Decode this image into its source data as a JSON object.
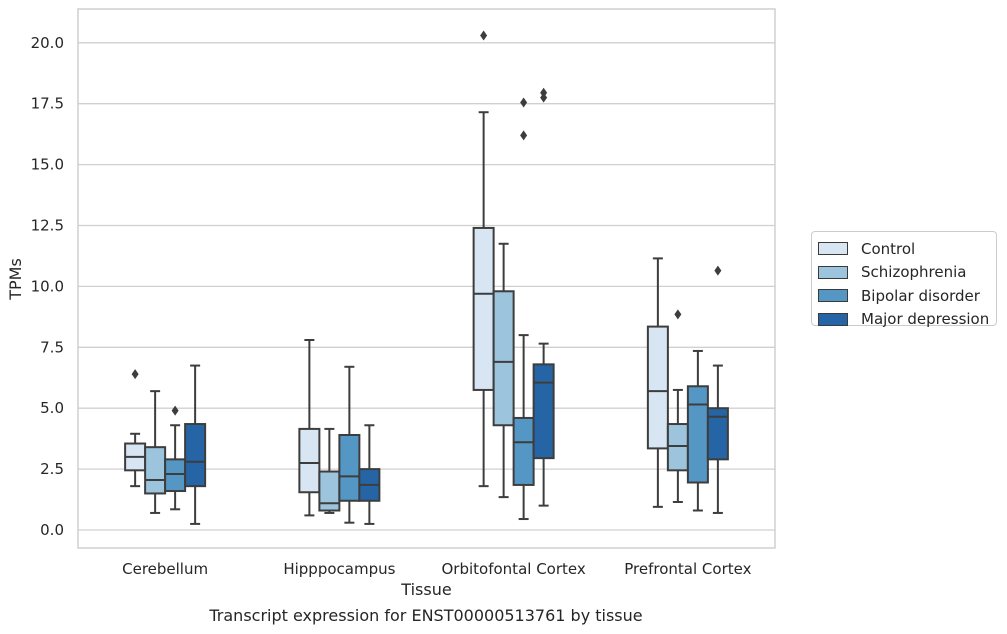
{
  "chart_data": {
    "type": "box",
    "xlabel": "Tissue",
    "ylabel": "TPMs",
    "caption": "Transcript expression for ENST00000513761 by tissue",
    "ylim": [
      -0.7,
      21.4
    ],
    "yticks": [
      0.0,
      2.5,
      5.0,
      7.5,
      10.0,
      12.5,
      15.0,
      17.5,
      20.0
    ],
    "ytick_labels": [
      "0.0",
      "2.5",
      "5.0",
      "7.5",
      "10.0",
      "12.5",
      "15.0",
      "17.5",
      "20.0"
    ],
    "grid": "horizontal",
    "legend_position": "right",
    "categories": [
      "Cerebellum",
      "Hipppocampus",
      "Orbitofontal Cortex",
      "Prefrontal Cortex"
    ],
    "series": [
      {
        "name": "Control",
        "color": "#d8e6f4",
        "boxes": [
          {
            "whislo": 1.8,
            "q1": 2.45,
            "med": 3.0,
            "q3": 3.55,
            "whishi": 3.95,
            "fliers": [
              6.4
            ]
          },
          {
            "whislo": 0.6,
            "q1": 1.55,
            "med": 2.75,
            "q3": 4.15,
            "whishi": 7.8,
            "fliers": []
          },
          {
            "whislo": 1.8,
            "q1": 5.75,
            "med": 9.7,
            "q3": 12.4,
            "whishi": 17.15,
            "fliers": [
              20.3
            ]
          },
          {
            "whislo": 0.95,
            "q1": 3.35,
            "med": 5.7,
            "q3": 8.35,
            "whishi": 11.15,
            "fliers": []
          }
        ]
      },
      {
        "name": "Schizophrenia",
        "color": "#9dc4dd",
        "boxes": [
          {
            "whislo": 0.7,
            "q1": 1.5,
            "med": 2.05,
            "q3": 3.4,
            "whishi": 5.7,
            "fliers": []
          },
          {
            "whislo": 0.7,
            "q1": 0.8,
            "med": 1.1,
            "q3": 2.4,
            "whishi": 4.15,
            "fliers": []
          },
          {
            "whislo": 1.35,
            "q1": 4.3,
            "med": 6.9,
            "q3": 9.8,
            "whishi": 11.75,
            "fliers": []
          },
          {
            "whislo": 1.15,
            "q1": 2.45,
            "med": 3.45,
            "q3": 4.35,
            "whishi": 5.75,
            "fliers": [
              8.85
            ]
          }
        ]
      },
      {
        "name": "Bipolar disorder",
        "color": "#5497c4",
        "boxes": [
          {
            "whislo": 0.85,
            "q1": 1.6,
            "med": 2.3,
            "q3": 2.9,
            "whishi": 4.3,
            "fliers": [
              4.9
            ]
          },
          {
            "whislo": 0.3,
            "q1": 1.2,
            "med": 2.2,
            "q3": 3.9,
            "whishi": 6.7,
            "fliers": []
          },
          {
            "whislo": 0.45,
            "q1": 1.85,
            "med": 3.6,
            "q3": 4.6,
            "whishi": 8.0,
            "fliers": [
              16.2,
              17.55
            ]
          },
          {
            "whislo": 0.8,
            "q1": 1.95,
            "med": 5.15,
            "q3": 5.9,
            "whishi": 7.35,
            "fliers": []
          }
        ]
      },
      {
        "name": "Major depression",
        "color": "#2565a6",
        "boxes": [
          {
            "whislo": 0.25,
            "q1": 1.8,
            "med": 2.8,
            "q3": 4.35,
            "whishi": 6.75,
            "fliers": []
          },
          {
            "whislo": 0.25,
            "q1": 1.2,
            "med": 1.85,
            "q3": 2.5,
            "whishi": 4.3,
            "fliers": []
          },
          {
            "whislo": 1.0,
            "q1": 2.95,
            "med": 6.05,
            "q3": 6.8,
            "whishi": 7.65,
            "fliers": [
              17.75,
              17.95
            ]
          },
          {
            "whislo": 0.7,
            "q1": 2.9,
            "med": 4.65,
            "q3": 5.0,
            "whishi": 6.75,
            "fliers": [
              10.65
            ]
          }
        ]
      }
    ]
  }
}
